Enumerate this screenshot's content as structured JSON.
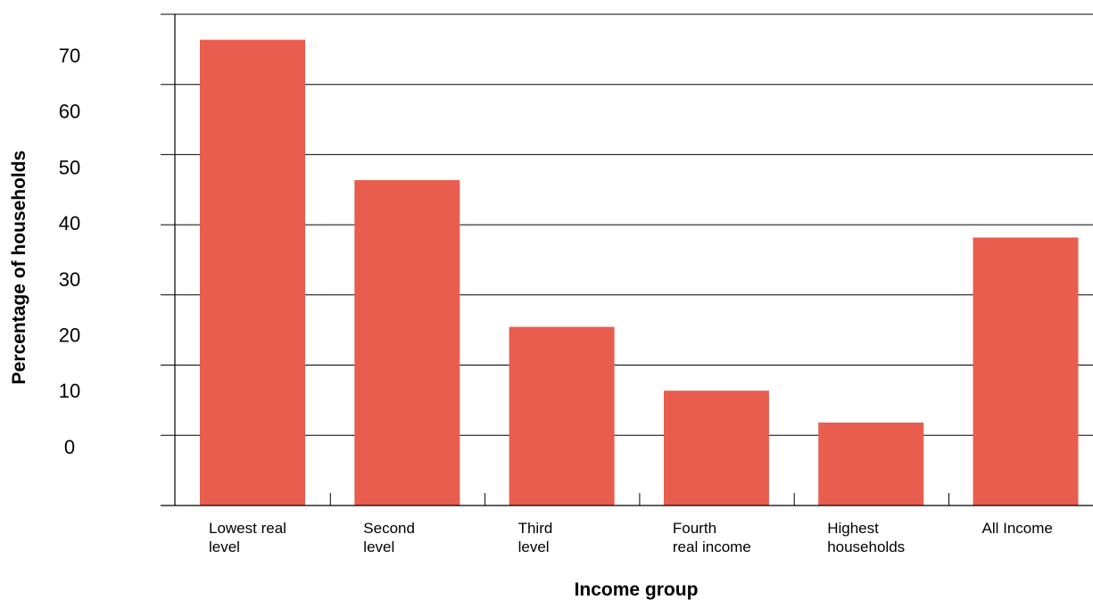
{
  "chart_data": {
    "type": "bar",
    "title": "",
    "xlabel": "Income group",
    "ylabel": "Percentage of households",
    "categories": [
      [
        "Lowest real",
        "level"
      ],
      [
        "Second",
        "level"
      ],
      [
        "Third",
        "level"
      ],
      [
        "Fourth",
        "real income"
      ],
      [
        "Highest",
        "households"
      ],
      [
        "All Income"
      ]
    ],
    "values": [
      66,
      44,
      21,
      11,
      6,
      35
    ],
    "yticks": [
      "70",
      "60",
      "50",
      "40",
      "30",
      "20",
      "10",
      "0"
    ],
    "ylim": [
      -7,
      70
    ],
    "grid": true,
    "bar_color": "#e85d4e",
    "axis_color": "#000000"
  }
}
